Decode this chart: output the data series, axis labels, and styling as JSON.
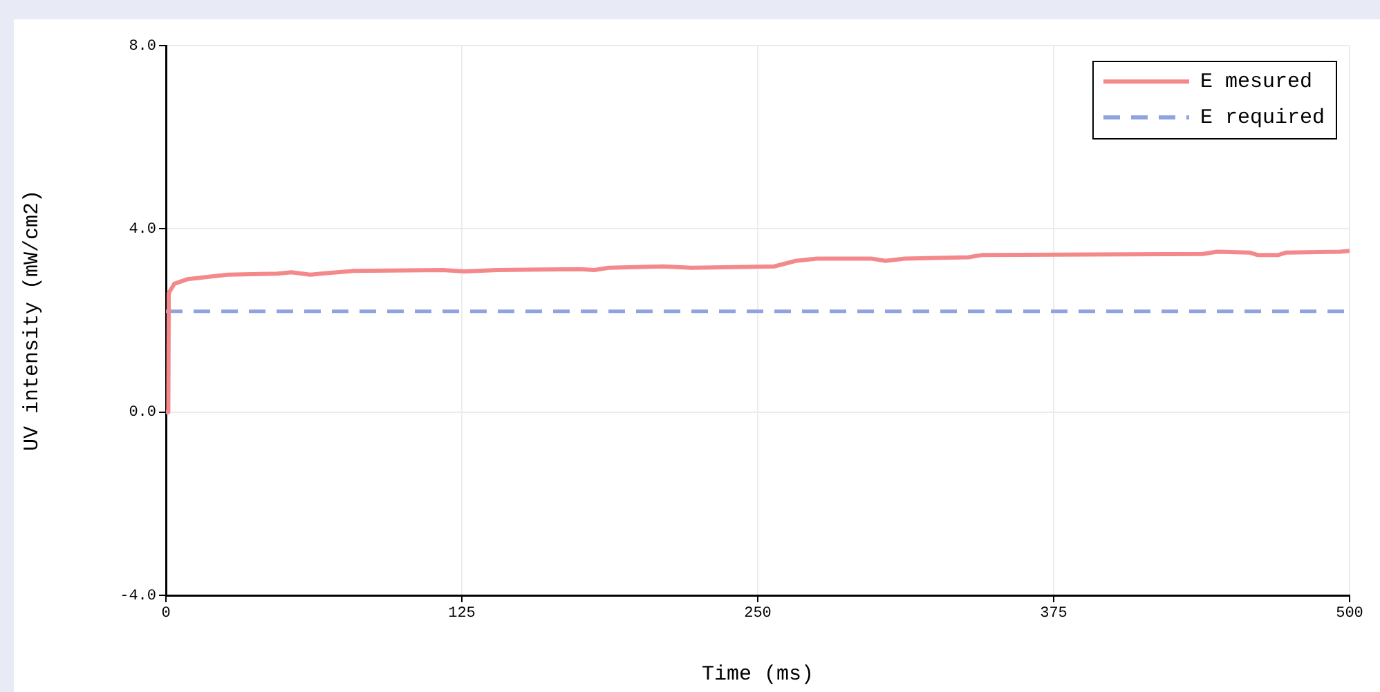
{
  "chart_data": {
    "type": "line",
    "xlabel": "Time (ms)",
    "ylabel": "UV intensity (mW/cm2)",
    "xlim": [
      0,
      500
    ],
    "xticks": [
      0,
      125,
      250,
      375,
      500
    ],
    "ylim": [
      -4,
      8
    ],
    "yticks": [
      {
        "value": -4,
        "label": "-4.0"
      },
      {
        "value": 0,
        "label": "0.0"
      },
      {
        "value": 4,
        "label": "4.0"
      },
      {
        "value": 8,
        "label": "8.0"
      }
    ],
    "grid": true,
    "legend": "top right",
    "marker": "none",
    "series": [
      {
        "name": "E mesured",
        "color": "#f4898b",
        "line_style": "solid",
        "x": [
          0,
          1,
          1.2,
          3.5,
          9,
          17.5,
          26,
          47,
          53,
          61,
          67,
          79,
          117,
          126,
          140,
          175,
          181,
          187,
          210,
          222,
          245,
          257,
          266,
          275,
          298,
          304,
          312,
          339,
          345,
          438,
          444,
          458,
          461,
          470,
          473,
          496,
          500
        ],
        "values": [
          0,
          0,
          2.6,
          2.8,
          2.9,
          2.95,
          3.0,
          3.02,
          3.05,
          3.0,
          3.03,
          3.08,
          3.1,
          3.07,
          3.1,
          3.12,
          3.1,
          3.15,
          3.18,
          3.15,
          3.17,
          3.18,
          3.3,
          3.35,
          3.35,
          3.3,
          3.35,
          3.38,
          3.43,
          3.45,
          3.5,
          3.48,
          3.43,
          3.43,
          3.48,
          3.5,
          3.52
        ]
      },
      {
        "name": "E required",
        "color": "#8fa3e0",
        "line_style": "dashed",
        "x": [
          0,
          500
        ],
        "values": [
          2.2,
          2.2
        ]
      }
    ]
  }
}
